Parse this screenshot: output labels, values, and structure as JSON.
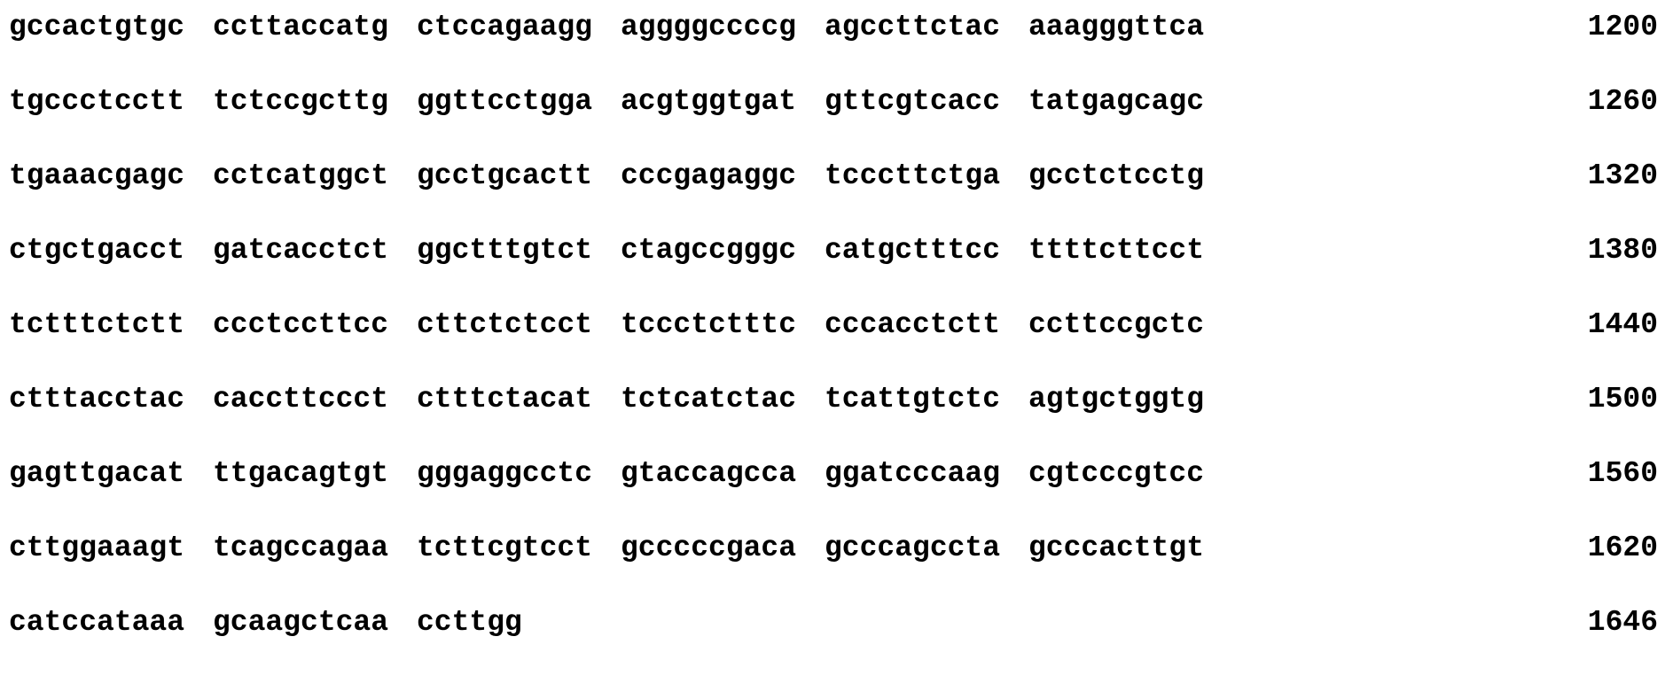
{
  "sequence": {
    "rows": [
      {
        "blocks": [
          "gccactgtgc",
          "ccttaccatg",
          "ctccagaagg",
          "aggggccccg",
          "agccttctac",
          "aaagggttca"
        ],
        "position": "1200"
      },
      {
        "blocks": [
          "tgccctcctt",
          "tctccgcttg",
          "ggttcctgga",
          "acgtggtgat",
          "gttcgtcacc",
          "tatgagcagc"
        ],
        "position": "1260"
      },
      {
        "blocks": [
          "tgaaacgagc",
          "cctcatggct",
          "gcctgcactt",
          "cccgagaggc",
          "tcccttctga",
          "gcctctcctg"
        ],
        "position": "1320"
      },
      {
        "blocks": [
          "ctgctgacct",
          "gatcacctct",
          "ggctttgtct",
          "ctagccgggc",
          "catgctttcc",
          "ttttcttcct"
        ],
        "position": "1380"
      },
      {
        "blocks": [
          "tctttctctt",
          "ccctccttcc",
          "cttctctcct",
          "tccctctttc",
          "cccacctctt",
          "ccttccgctc"
        ],
        "position": "1440"
      },
      {
        "blocks": [
          "ctttacctac",
          "caccttccct",
          "ctttctacat",
          "tctcatctac",
          "tcattgtctc",
          "agtgctggtg"
        ],
        "position": "1500"
      },
      {
        "blocks": [
          "gagttgacat",
          "ttgacagtgt",
          "gggaggcctc",
          "gtaccagcca",
          "ggatcccaag",
          "cgtcccgtcc"
        ],
        "position": "1560"
      },
      {
        "blocks": [
          "cttggaaagt",
          "tcagccagaa",
          "tcttcgtcct",
          "gcccccgaca",
          "gcccagccta",
          "gcccacttgt"
        ],
        "position": "1620"
      },
      {
        "blocks": [
          "catccataaa",
          "gcaagctcaa",
          "ccttgg",
          "",
          "",
          ""
        ],
        "position": "1646"
      }
    ]
  }
}
